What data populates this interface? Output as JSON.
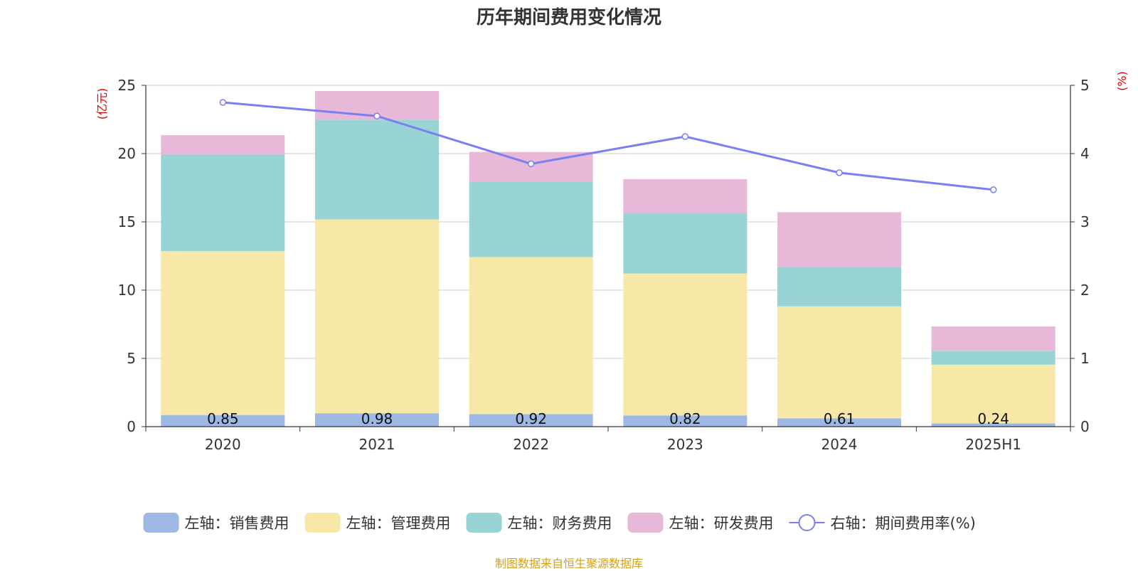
{
  "chart_data": {
    "type": "bar",
    "title": "历年期间费用变化情况",
    "y_left_unit": "(亿元)",
    "y_right_unit": "(%)",
    "categories": [
      "2020",
      "2021",
      "2022",
      "2023",
      "2024",
      "2025H1"
    ],
    "ylim_left": [
      0,
      25
    ],
    "yticks_left": [
      "0",
      "5",
      "10",
      "15",
      "20",
      "25"
    ],
    "ylim_right": [
      0,
      5
    ],
    "yticks_right": [
      "0",
      "1",
      "2",
      "3",
      "4",
      "5"
    ],
    "grid": true,
    "legend_position": "bottom",
    "series": [
      {
        "name": "左轴：销售费用",
        "type": "bar",
        "stack": true,
        "color": "#9db8e2",
        "values": [
          0.85,
          0.98,
          0.92,
          0.82,
          0.61,
          0.24
        ],
        "labels": [
          "0.85",
          "0.98",
          "0.92",
          "0.82",
          "0.61",
          "0.24"
        ]
      },
      {
        "name": "左轴：管理费用",
        "type": "bar",
        "stack": true,
        "color": "#f7e8a8",
        "values": [
          12.0,
          14.2,
          11.5,
          10.4,
          8.2,
          4.3
        ]
      },
      {
        "name": "左轴：财务费用",
        "type": "bar",
        "stack": true,
        "color": "#98d4d4",
        "values": [
          7.1,
          7.3,
          5.5,
          4.4,
          2.9,
          1.0
        ]
      },
      {
        "name": "左轴：研发费用",
        "type": "bar",
        "stack": true,
        "color": "#e8b8d8",
        "values": [
          1.4,
          2.1,
          2.2,
          2.5,
          4.0,
          1.8
        ]
      },
      {
        "name": "右轴：期间费用率(%)",
        "type": "line",
        "axis": "right",
        "color": "#7b7ff0",
        "values": [
          4.75,
          4.55,
          3.85,
          4.25,
          3.72,
          3.47
        ]
      }
    ]
  },
  "footer": {
    "source": "制图数据来自恒生聚源数据库"
  }
}
